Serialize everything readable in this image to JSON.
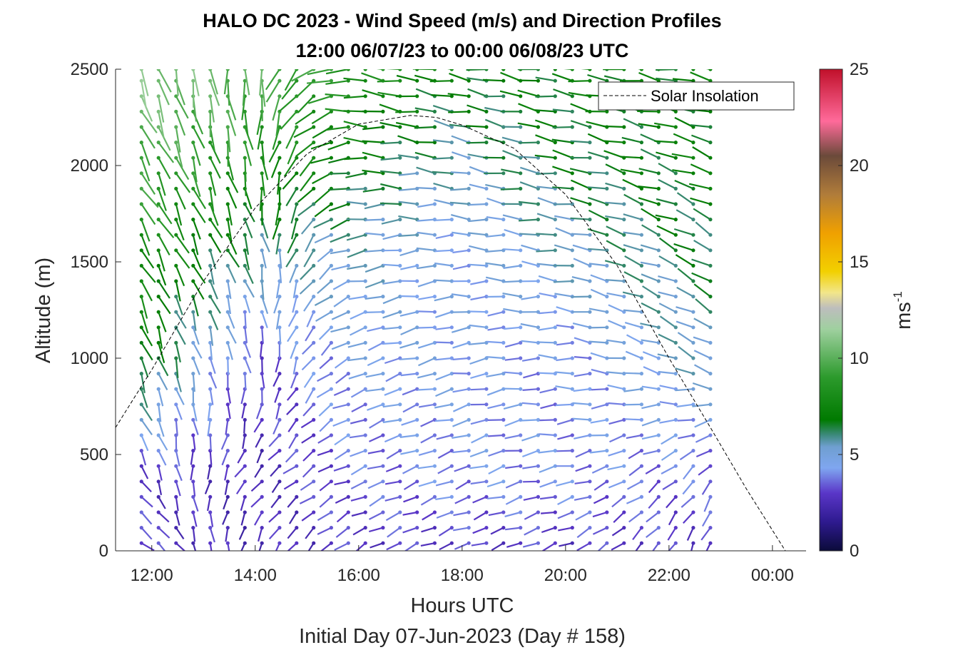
{
  "chart_data": {
    "type": "quiver",
    "title_line1": "HALO DC 2023 - Wind Speed (m/s) and Direction Profiles",
    "title_line2": "12:00 06/07/23 to 00:00 06/08/23  UTC",
    "xlabel": "Hours UTC",
    "subtitle": "Initial Day 07-Jun-2023 (Day # 158)",
    "ylabel": "Altitude (m)",
    "xlim_hours": [
      11.3,
      24.65
    ],
    "ylim": [
      0,
      2500
    ],
    "x_ticks": [
      {
        "hour": 12,
        "label": "12:00"
      },
      {
        "hour": 14,
        "label": "14:00"
      },
      {
        "hour": 16,
        "label": "16:00"
      },
      {
        "hour": 18,
        "label": "18:00"
      },
      {
        "hour": 20,
        "label": "20:00"
      },
      {
        "hour": 22,
        "label": "22:00"
      },
      {
        "hour": 24,
        "label": "00:00"
      }
    ],
    "y_ticks": [
      0,
      500,
      1000,
      1500,
      2000,
      2500
    ],
    "colorbar": {
      "label": "ms",
      "label_superscript": "-1",
      "range": [
        0,
        25
      ],
      "ticks": [
        0,
        5,
        10,
        15,
        20,
        25
      ],
      "colormap": [
        {
          "v": 0,
          "c": "#0b0b3a"
        },
        {
          "v": 1.5,
          "c": "#2e1a8f"
        },
        {
          "v": 3,
          "c": "#5a36c8"
        },
        {
          "v": 4.3,
          "c": "#7fa6f0"
        },
        {
          "v": 5.4,
          "c": "#6f9fd0"
        },
        {
          "v": 6.0,
          "c": "#3e8a7e"
        },
        {
          "v": 6.8,
          "c": "#007a00"
        },
        {
          "v": 9,
          "c": "#2c9a2c"
        },
        {
          "v": 11.5,
          "c": "#9fd09f"
        },
        {
          "v": 12.6,
          "c": "#bdbdbd"
        },
        {
          "v": 13.4,
          "c": "#f2e68a"
        },
        {
          "v": 14.5,
          "c": "#f2d000"
        },
        {
          "v": 16.5,
          "c": "#f0a000"
        },
        {
          "v": 18.5,
          "c": "#b07c3a"
        },
        {
          "v": 20.5,
          "c": "#6b4a3a"
        },
        {
          "v": 22.3,
          "c": "#ff6a9a"
        },
        {
          "v": 25,
          "c": "#c0102a"
        }
      ]
    },
    "legend": {
      "label": "Solar Insolation",
      "position": "top-right"
    },
    "solar_insolation_curve": [
      {
        "hour": 11.3,
        "alt": 640
      },
      {
        "hour": 12.0,
        "alt": 940
      },
      {
        "hour": 13.0,
        "alt": 1400
      },
      {
        "hour": 14.0,
        "alt": 1780
      },
      {
        "hour": 15.0,
        "alt": 2060
      },
      {
        "hour": 16.0,
        "alt": 2215
      },
      {
        "hour": 17.0,
        "alt": 2260
      },
      {
        "hour": 17.5,
        "alt": 2250
      },
      {
        "hour": 18.0,
        "alt": 2210
      },
      {
        "hour": 19.0,
        "alt": 2090
      },
      {
        "hour": 20.0,
        "alt": 1850
      },
      {
        "hour": 21.0,
        "alt": 1480
      },
      {
        "hour": 22.0,
        "alt": 1000
      },
      {
        "hour": 22.8,
        "alt": 640
      },
      {
        "hour": 23.5,
        "alt": 320
      },
      {
        "hour": 24.25,
        "alt": 0
      },
      {
        "hour": 24.65,
        "alt": 0
      }
    ],
    "wind_profiles": {
      "time_hours": [
        11.8,
        12.13,
        12.47,
        12.8,
        13.13,
        13.47,
        13.8,
        14.13,
        14.47,
        14.8,
        15.13,
        15.47,
        15.8,
        16.13,
        16.47,
        16.8,
        17.13,
        17.47,
        17.8,
        18.13,
        18.47,
        18.8,
        19.13,
        19.47,
        19.8,
        20.13,
        20.47,
        20.8,
        21.13,
        21.47,
        21.8,
        22.13,
        22.47,
        22.8
      ],
      "altitude_levels_m": [
        40,
        120,
        200,
        280,
        360,
        440,
        520,
        600,
        680,
        760,
        840,
        920,
        1000,
        1080,
        1160,
        1240,
        1320,
        1400,
        1480,
        1560,
        1640,
        1720,
        1800,
        1880,
        1960,
        2040,
        2120,
        2200,
        2280,
        2360,
        2440,
        2500
      ],
      "speed_field_ms": {
        "time_anchor_hours": [
          11.8,
          14.0,
          16.0,
          18.0,
          20.0,
          22.8
        ],
        "altitude_anchor_m": [
          40,
          400,
          1000,
          1600,
          2000,
          2500
        ],
        "values": [
          [
            3.0,
            2.5,
            3.0,
            3.0,
            3.0,
            3.0
          ],
          [
            3.0,
            2.5,
            3.5,
            4.0,
            4.0,
            3.5
          ],
          [
            7.0,
            3.0,
            4.5,
            4.5,
            4.0,
            5.5
          ],
          [
            8.0,
            6.0,
            5.5,
            4.5,
            5.5,
            6.5
          ],
          [
            9.5,
            8.0,
            7.0,
            5.5,
            6.5,
            7.0
          ],
          [
            11.0,
            10.0,
            8.5,
            7.0,
            7.0,
            7.0
          ]
        ]
      },
      "direction_field_deg_from": {
        "time_anchor_hours": [
          11.8,
          14.0,
          16.0,
          18.0,
          20.0,
          22.8
        ],
        "altitude_anchor_m": [
          40,
          400,
          1000,
          1600,
          2000,
          2500
        ],
        "values": [
          [
            120,
            200,
            240,
            250,
            250,
            200
          ],
          [
            150,
            220,
            250,
            250,
            260,
            220
          ],
          [
            160,
            170,
            250,
            260,
            270,
            300
          ],
          [
            150,
            160,
            260,
            270,
            280,
            300
          ],
          [
            150,
            170,
            270,
            280,
            280,
            290
          ],
          [
            160,
            180,
            280,
            280,
            280,
            280
          ]
        ]
      }
    }
  }
}
